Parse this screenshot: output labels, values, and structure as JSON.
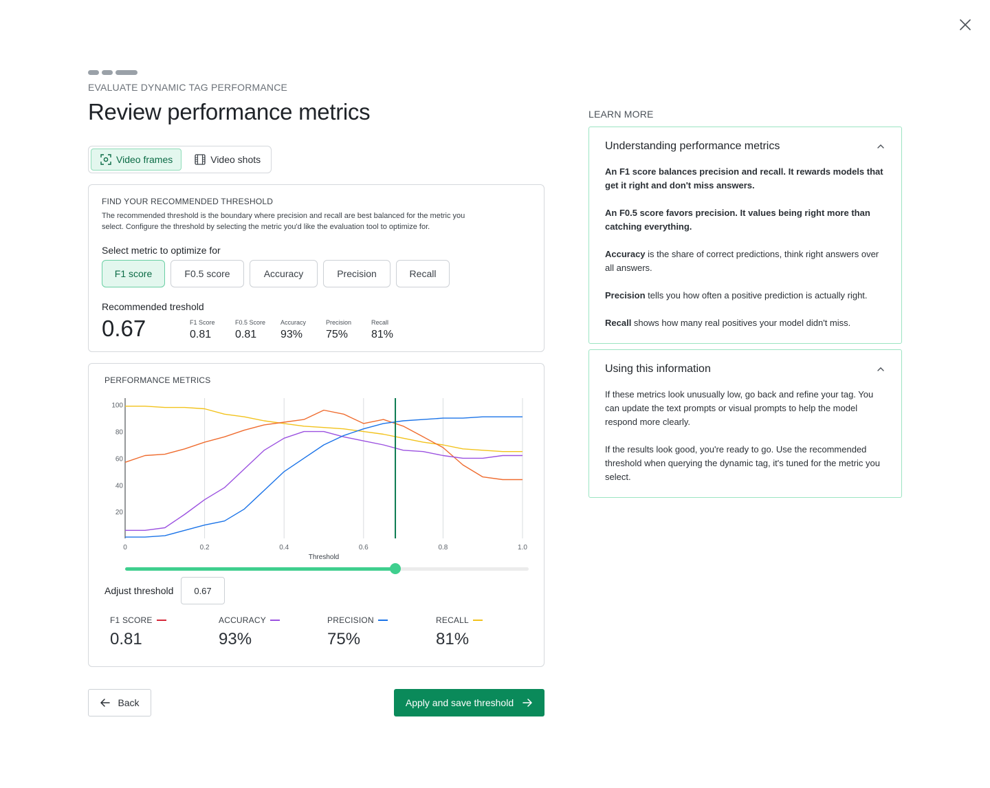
{
  "header": {
    "eyebrow": "EVALUATE DYNAMIC TAG PERFORMANCE",
    "title": "Review performance metrics",
    "close_icon": "close-icon"
  },
  "view_toggle": [
    {
      "label": "Video frames",
      "icon": "frame-focus-icon",
      "active": true
    },
    {
      "label": "Video shots",
      "icon": "film-icon",
      "active": false
    }
  ],
  "threshold_card": {
    "label": "FIND YOUR RECOMMENDED THRESHOLD",
    "description": "The recommended threshold is the boundary where precision and recall are best balanced for the metric you select. Configure the threshold by selecting the metric you'd like the evaluation tool to optimize for.",
    "select_label": "Select metric to optimize for",
    "metrics": [
      {
        "label": "F1 score",
        "active": true
      },
      {
        "label": "F0.5 score",
        "active": false
      },
      {
        "label": "Accuracy",
        "active": false
      },
      {
        "label": "Precision",
        "active": false
      },
      {
        "label": "Recall",
        "active": false
      }
    ],
    "recommended_label": "Recommended treshold",
    "recommended_value": "0.67",
    "mini_stats": [
      {
        "label": "F1 Score",
        "value": "0.81"
      },
      {
        "label": "F0.5 Score",
        "value": "0.81"
      },
      {
        "label": "Accuracy",
        "value": "93%"
      },
      {
        "label": "Precision",
        "value": "75%"
      },
      {
        "label": "Recall",
        "value": "81%"
      }
    ]
  },
  "performance_card": {
    "label": "PERFORMANCE METRICS",
    "adjust_label": "Adjust threshold",
    "adjust_value": "0.67",
    "slider_value": 0.67,
    "stats": [
      {
        "label": "F1 SCORE",
        "value": "0.81",
        "color": "#d62839"
      },
      {
        "label": "ACCURACY",
        "value": "93%",
        "color": "#9b51e0"
      },
      {
        "label": "PRECISION",
        "value": "75%",
        "color": "#1a73e8"
      },
      {
        "label": "RECALL",
        "value": "81%",
        "color": "#f2c21b"
      }
    ]
  },
  "chart_data": {
    "type": "line",
    "xlabel": "Threshold",
    "ylabel": "",
    "xlim": [
      0,
      1
    ],
    "ylim": [
      0,
      105
    ],
    "x_ticks": [
      "0",
      "0.2",
      "0.4",
      "0.6",
      "0.8",
      "1.0"
    ],
    "y_ticks": [
      "20",
      "40",
      "60",
      "80",
      "100"
    ],
    "grid": "vertical",
    "threshold_marker": 0.68,
    "x": [
      0,
      0.05,
      0.1,
      0.15,
      0.2,
      0.25,
      0.3,
      0.35,
      0.4,
      0.45,
      0.5,
      0.55,
      0.6,
      0.65,
      0.7,
      0.75,
      0.8,
      0.85,
      0.9,
      0.95,
      1.0
    ],
    "series": [
      {
        "key": "recall",
        "color": "#f2c21b",
        "values": [
          99,
          99,
          98,
          98,
          97,
          93,
          91,
          88,
          86,
          84,
          83,
          82,
          80,
          78,
          75,
          72,
          70,
          67,
          66,
          65,
          65
        ]
      },
      {
        "key": "f1",
        "color": "#ef6c2f",
        "values": [
          57,
          62,
          63,
          67,
          72,
          76,
          81,
          85,
          87,
          89,
          96,
          93,
          86,
          89,
          84,
          76,
          68,
          55,
          46,
          44,
          44
        ]
      },
      {
        "key": "accuracy",
        "color": "#9b51e0",
        "values": [
          6,
          6,
          8,
          18,
          29,
          38,
          52,
          66,
          75,
          80,
          80,
          76,
          73,
          70,
          66,
          65,
          62,
          60,
          60,
          62,
          62
        ]
      },
      {
        "key": "precision",
        "color": "#1a73e8",
        "values": [
          1,
          1,
          2,
          6,
          10,
          13,
          22,
          36,
          50,
          60,
          70,
          77,
          82,
          86,
          88,
          89,
          90,
          90,
          91,
          91,
          91
        ]
      }
    ]
  },
  "footer": {
    "back_label": "Back",
    "apply_label": "Apply and save threshold"
  },
  "learn_more": {
    "label": "LEARN MORE",
    "sections": [
      {
        "title": "Understanding performance metrics",
        "paragraphs": [
          {
            "bold": "An F1 score balances precision and recall. It rewards models that get it right and don't miss answers.",
            "rest": ""
          },
          {
            "bold": "An F0.5 score favors precision. It values being right more than catching everything.",
            "rest": ""
          },
          {
            "bold": "Accuracy",
            "rest": " is the share of correct predictions, think right answers over all answers."
          },
          {
            "bold": "Precision",
            "rest": " tells you how often a positive prediction is actually right."
          },
          {
            "bold": "Recall",
            "rest": " shows how many real positives your model didn't miss."
          }
        ]
      },
      {
        "title": "Using this information",
        "paragraphs": [
          {
            "bold": "",
            "rest": "If these metrics look unusually low, go back and refine your tag. You can update the text prompts or visual prompts to help the model respond more clearly."
          },
          {
            "bold": "",
            "rest": "If the results look good, you're ready to go. Use the recommended threshold when querying the dynamic tag, it's tuned for the metric you select."
          }
        ]
      }
    ]
  }
}
